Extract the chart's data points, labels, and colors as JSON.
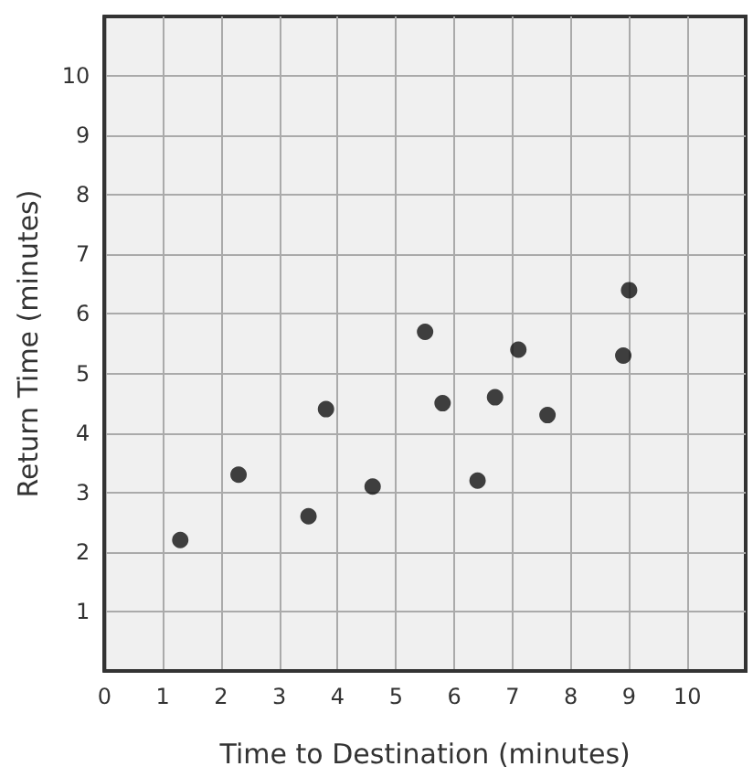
{
  "chart_data": {
    "type": "scatter",
    "xlabel": "Time to Destination (minutes)",
    "ylabel": "Return Time (minutes)",
    "x": [
      1.3,
      2.3,
      3.5,
      3.8,
      4.6,
      5.5,
      5.8,
      6.4,
      6.7,
      7.1,
      7.6,
      8.9,
      9.0
    ],
    "values": [
      2.2,
      3.3,
      2.6,
      4.4,
      3.1,
      5.7,
      4.5,
      3.2,
      4.6,
      5.4,
      4.3,
      5.3,
      6.4
    ],
    "color": "#111111",
    "marker": "circle",
    "grid": true,
    "xlim": [
      0,
      11
    ],
    "xticks": [
      0,
      1,
      2,
      3,
      4,
      5,
      6,
      7,
      8,
      9,
      10
    ],
    "ylim": [
      0,
      11
    ],
    "yticks": [
      {
        "value": 0,
        "label": null
      },
      1,
      2,
      3,
      4,
      5,
      6,
      7,
      8,
      9,
      10
    ]
  }
}
